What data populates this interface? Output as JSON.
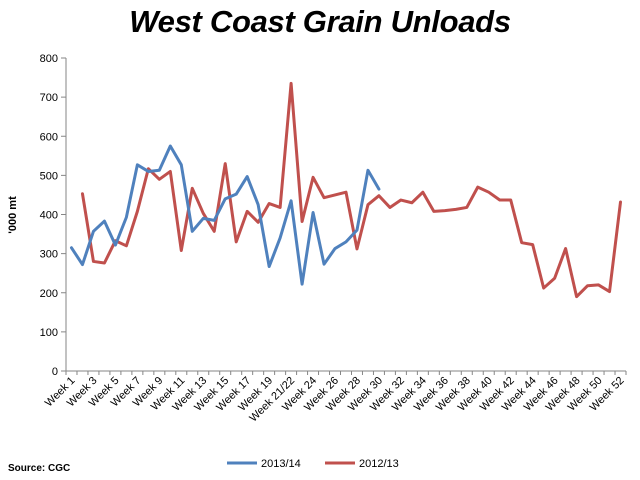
{
  "chart_data": {
    "type": "line",
    "title": "West Coast Grain Unloads",
    "ylabel": "'000 mt",
    "xlabel": "",
    "ylim": [
      0,
      800
    ],
    "yticks": [
      0,
      100,
      200,
      300,
      400,
      500,
      600,
      700,
      800
    ],
    "grid": "none",
    "legend_position": "bottom",
    "source": "Source: CGC",
    "x_tick_labels": [
      "Week 1",
      "Week 3",
      "Week 5",
      "Week 7",
      "Week 9",
      "Week 11",
      "Week 13",
      "Week 15",
      "Week 17",
      "Week 19",
      "Week 21/22",
      "Week 24",
      "Week 26",
      "Week 28",
      "Week 30",
      "Week 32",
      "Week 34",
      "Week 36",
      "Week 38",
      "Week 40",
      "Week 42",
      "Week 44",
      "Week 46",
      "Week 48",
      "Week 50",
      "Week 52"
    ],
    "x_count": 51,
    "series": [
      {
        "name": "2013/14",
        "color": "#4f81bd",
        "values": [
          315,
          272,
          357,
          383,
          322,
          393,
          527,
          510,
          513,
          575,
          527,
          357,
          390,
          385,
          440,
          452,
          497,
          425,
          267,
          340,
          435,
          222,
          405,
          273,
          313,
          330,
          360,
          513,
          465
        ]
      },
      {
        "name": "2012/13",
        "color": "#c0504d",
        "values": [
          null,
          453,
          280,
          276,
          333,
          320,
          408,
          517,
          490,
          510,
          308,
          467,
          403,
          357,
          530,
          330,
          408,
          380,
          428,
          418,
          735,
          382,
          495,
          443,
          450,
          457,
          312,
          425,
          448,
          418,
          437,
          430,
          457,
          408,
          410,
          413,
          418,
          470,
          457,
          437,
          437,
          328,
          323,
          212,
          237,
          313,
          190,
          218,
          220,
          203,
          432
        ]
      }
    ]
  }
}
